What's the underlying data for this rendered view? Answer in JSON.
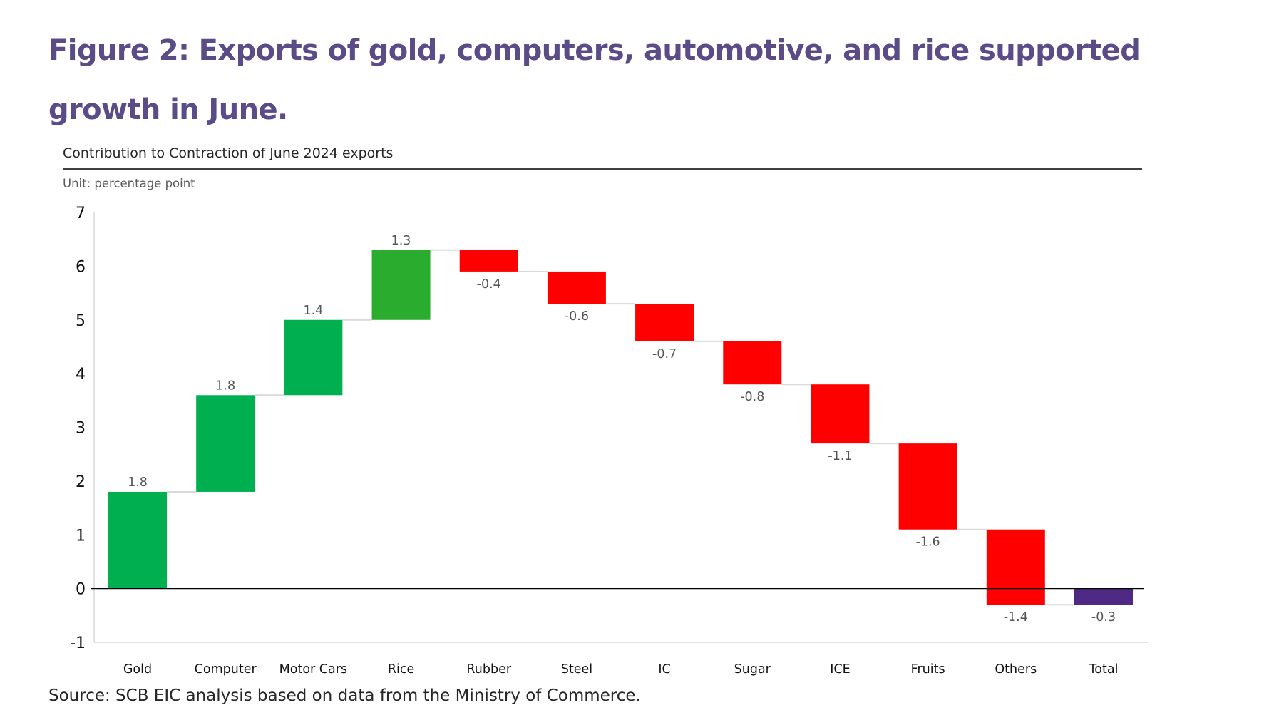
{
  "figure": {
    "title": "Figure 2: Exports of gold, computers, automotive, and rice supported growth in June.",
    "subtitle": "Contribution to Contraction of June 2024 exports",
    "unit": "Unit: percentage point",
    "source": "Source: SCB EIC analysis based on data from the Ministry of Commerce."
  },
  "colors": {
    "title": "#5B4B86",
    "increase": "#00B050",
    "increase_alt": "#2AAD2E",
    "decrease": "#FF0000",
    "total": "#4E2A84",
    "connector": "#D9D9D9",
    "axis": "#000000"
  },
  "chart_data": {
    "type": "waterfall",
    "title": "Contribution to Contraction of June 2024 exports",
    "ylabel": "Unit: percentage point",
    "xlabel": "",
    "categories": [
      "Gold",
      "Computer",
      "Motor Cars",
      "Rice",
      "Rubber",
      "Steel",
      "IC",
      "Sugar",
      "ICE",
      "Fruits",
      "Others",
      "Total"
    ],
    "values": [
      1.8,
      1.8,
      1.4,
      1.3,
      -0.4,
      -0.6,
      -0.7,
      -0.8,
      -1.1,
      -1.6,
      -1.4,
      -0.3
    ],
    "data_labels": [
      "1.8",
      "1.8",
      "1.4",
      "1.3",
      "-0.4",
      "-0.6",
      "-0.7",
      "-0.8",
      "-1.1",
      "-1.6",
      "-1.4",
      "-0.3"
    ],
    "is_total": [
      false,
      false,
      false,
      false,
      false,
      false,
      false,
      false,
      false,
      false,
      false,
      true
    ],
    "bar_colors": [
      "#00B050",
      "#00B050",
      "#00B050",
      "#2AAD2E",
      "#FF0000",
      "#FF0000",
      "#FF0000",
      "#FF0000",
      "#FF0000",
      "#FF0000",
      "#FF0000",
      "#4E2A84"
    ],
    "ylim": [
      -1,
      7
    ],
    "yticks": [
      -1,
      0,
      1,
      2,
      3,
      4,
      5,
      6,
      7
    ],
    "ytick_labels": [
      "-1",
      "0",
      "1",
      "2",
      "3",
      "4",
      "5",
      "6",
      "7"
    ],
    "grid": false,
    "legend": "none"
  }
}
